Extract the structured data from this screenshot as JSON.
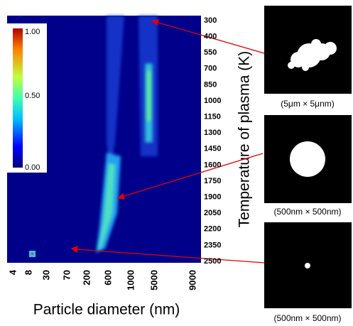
{
  "figure": {
    "colorbar": {
      "ticks": [
        "1.00",
        "0.50",
        "0.00"
      ]
    },
    "y_axis": {
      "title": "Temperature of plasma (K)",
      "labels": [
        "300",
        "400",
        "550",
        "700",
        "850",
        "1000",
        "1150",
        "1300",
        "1450",
        "1600",
        "1750",
        "1900",
        "2050",
        "2200",
        "2350",
        "2500"
      ]
    },
    "x_axis": {
      "title": "Particle diameter (nm)",
      "labels": [
        "4",
        "8",
        "30",
        "70",
        "200",
        "600",
        "1000",
        "5000",
        "9000"
      ]
    },
    "images": [
      {
        "caption": "(5μm × 5μnm)"
      },
      {
        "caption": "(500nm × 500nm)"
      },
      {
        "caption": "(500nm × 500nm)"
      }
    ]
  }
}
